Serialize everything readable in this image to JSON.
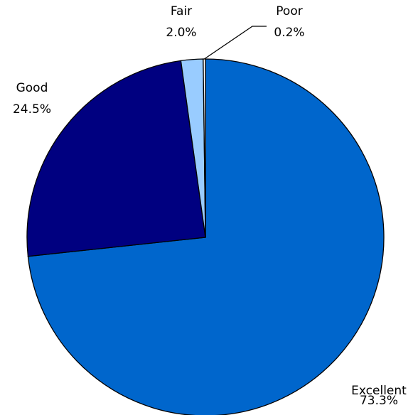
{
  "chart_data": {
    "type": "pie",
    "categories": [
      "Excellent",
      "Good",
      "Fair",
      "Poor"
    ],
    "values": [
      73.3,
      24.5,
      2.0,
      0.2
    ],
    "value_labels": [
      "73.3%",
      "24.5%",
      "2.0%",
      "0.2%"
    ],
    "colors": [
      "#0066cc",
      "#000080",
      "#99ccff",
      "#ffffff"
    ]
  }
}
